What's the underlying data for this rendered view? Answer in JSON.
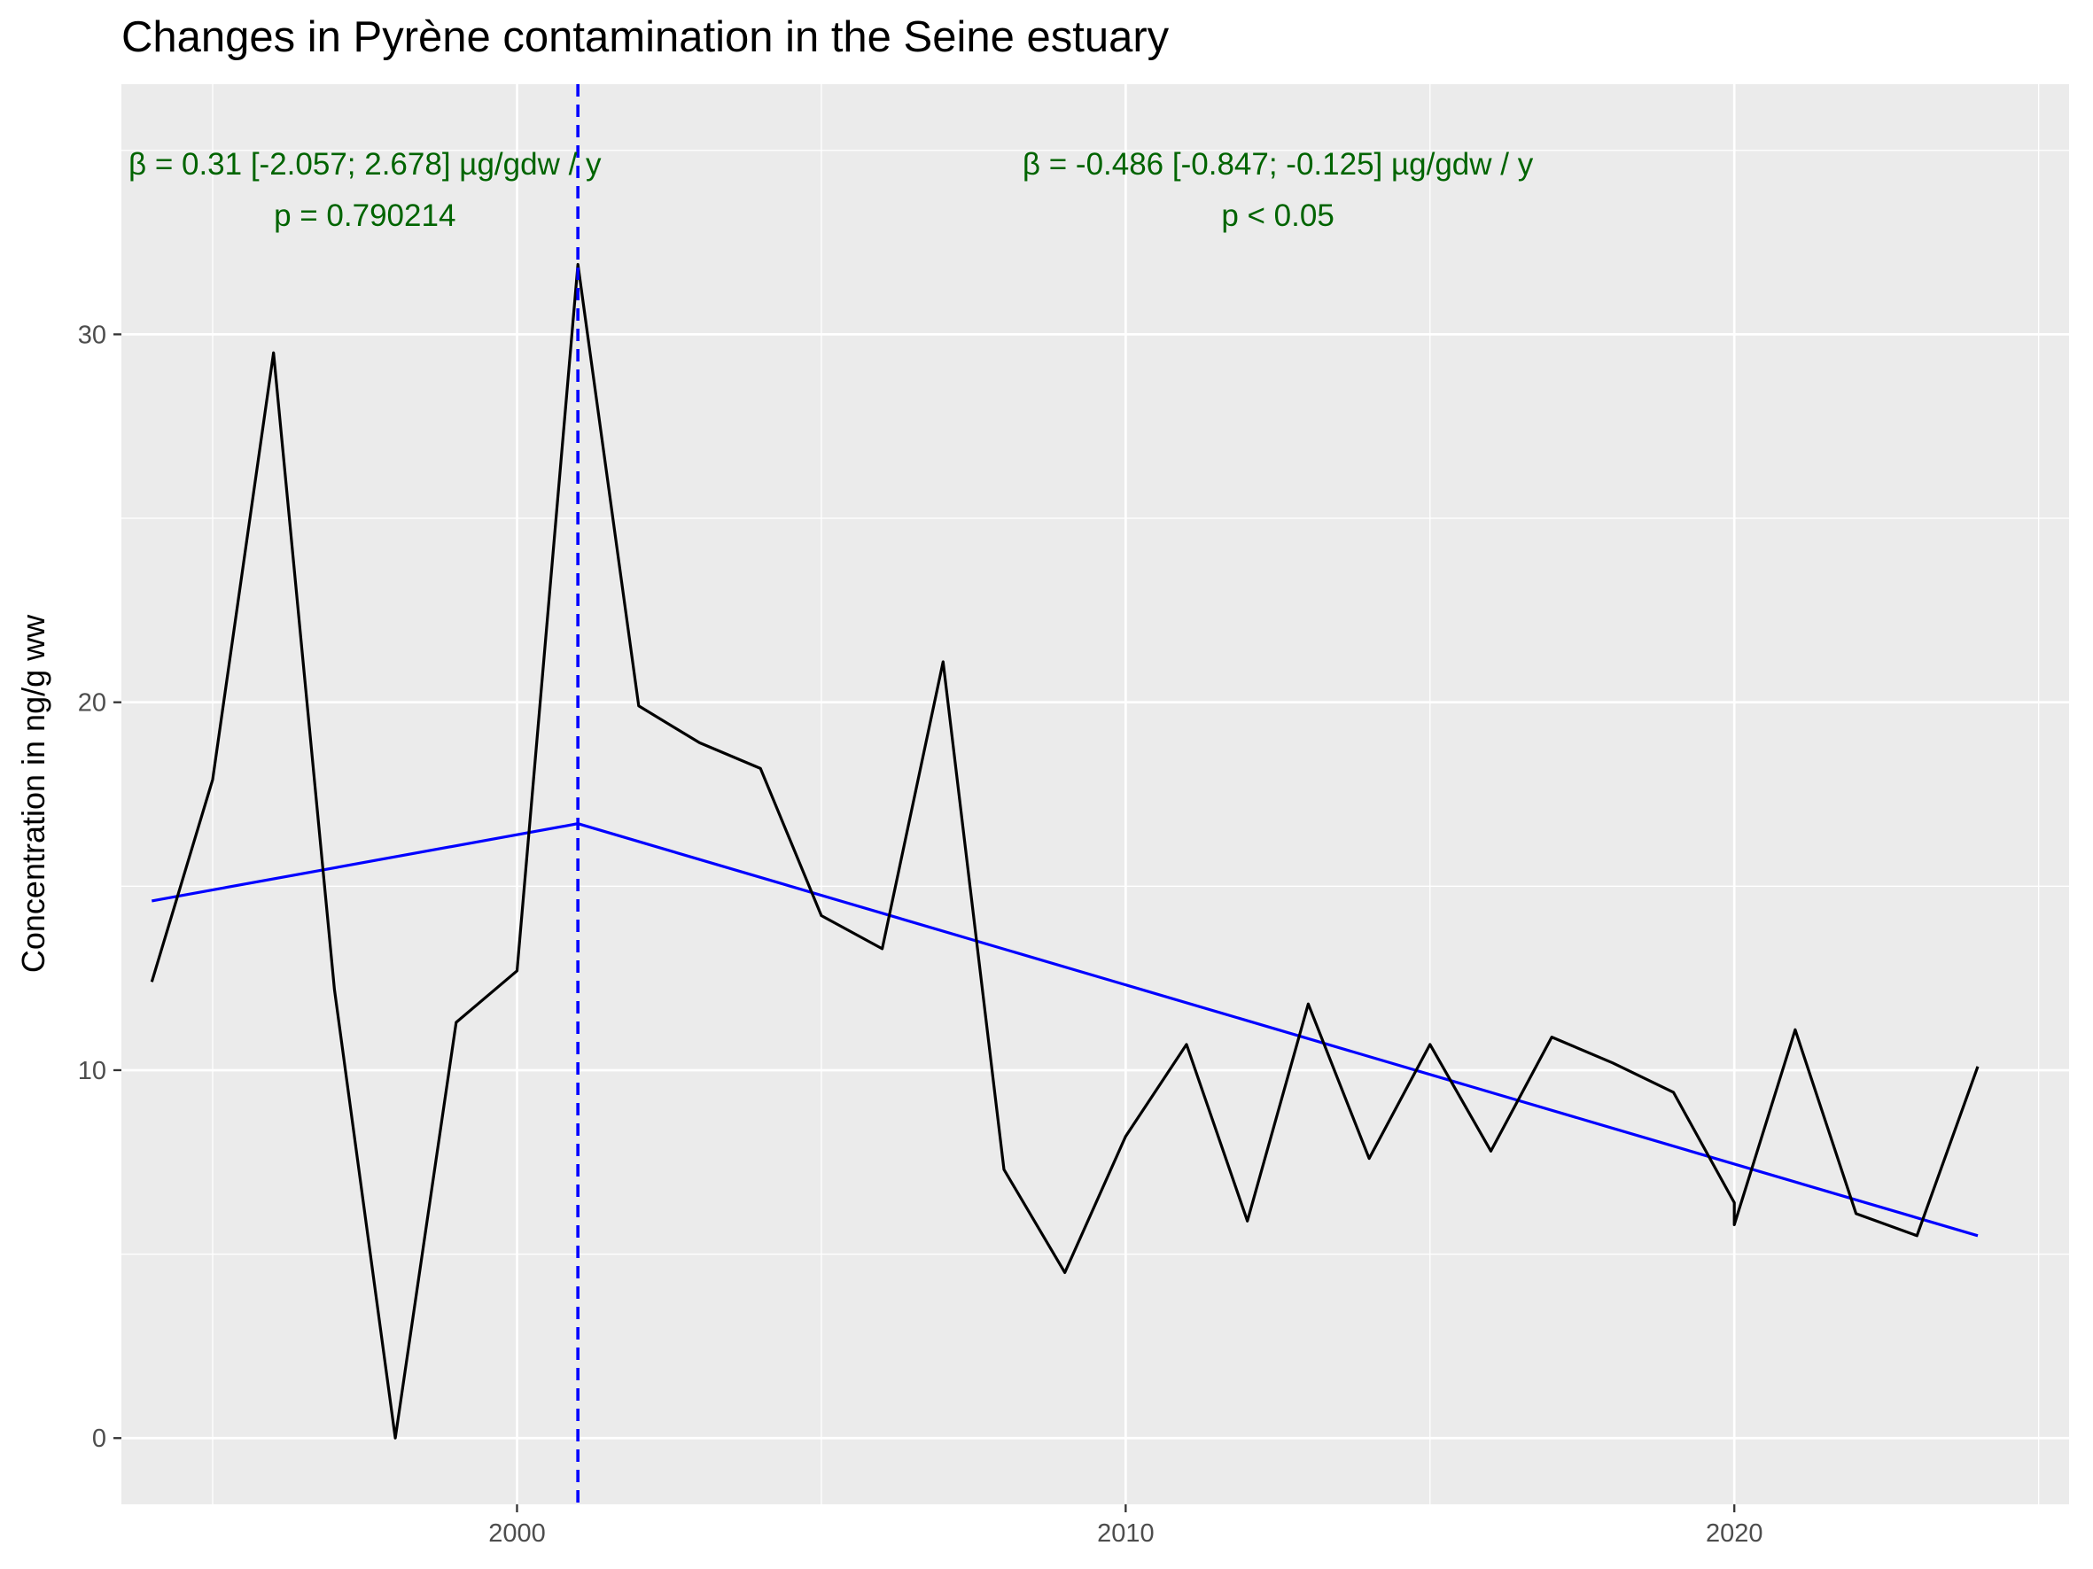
{
  "chart_data": {
    "type": "line",
    "title": "Changes in Pyrène contamination in the Seine estuary",
    "xlabel": "",
    "ylabel": "Concentration in ng/g ww",
    "xlim": [
      1993.5,
      2025.5
    ],
    "ylim": [
      -1.8,
      36.8
    ],
    "x_ticks": [
      2000,
      2010,
      2020
    ],
    "x_tick_labels": [
      "2000",
      "2010",
      "2020"
    ],
    "x_minor_ticks": [
      1995,
      2005,
      2015,
      2025
    ],
    "y_ticks": [
      0,
      10,
      20,
      30
    ],
    "y_tick_labels": [
      "0",
      "10",
      "20",
      "30"
    ],
    "y_minor_ticks": [
      5,
      15,
      25,
      35
    ],
    "grid": true,
    "legend": "none",
    "series": [
      {
        "kind": "observed",
        "color": "#000000",
        "x": [
          1994,
          1995,
          1996,
          1997,
          1998,
          1999,
          2000,
          2001,
          2002,
          2003,
          2004,
          2005,
          2006,
          2007,
          2008,
          2009,
          2010,
          2011,
          2012,
          2013,
          2014,
          2015,
          2016,
          2017,
          2018,
          2019,
          2020,
          2020,
          2021,
          2022,
          2023,
          2024
        ],
        "values": [
          12.4,
          17.9,
          29.5,
          12.2,
          0.0,
          11.3,
          12.7,
          31.9,
          19.9,
          18.9,
          18.2,
          14.2,
          13.3,
          21.1,
          7.3,
          4.5,
          8.2,
          10.7,
          5.9,
          11.8,
          7.6,
          10.7,
          7.8,
          10.9,
          10.2,
          9.4,
          6.4,
          5.8,
          11.1,
          6.1,
          5.5,
          10.1
        ]
      },
      {
        "kind": "segmented-trend",
        "color": "#0000ff",
        "x": [
          1994,
          2001,
          2024
        ],
        "values": [
          14.6,
          16.7,
          5.5
        ]
      }
    ],
    "breakpoint": {
      "x": 2001,
      "color": "#0000ff",
      "style": "dashed"
    },
    "annotations": [
      {
        "line1": "β = 0.31 [-2.057; 2.678] µg/gdw / y",
        "line2": "p = 0.790214",
        "color": "#006400",
        "x": 1997.5
      },
      {
        "line1": "β = -0.486 [-0.847; -0.125] µg/gdw / y",
        "line2": "p < 0.05",
        "color": "#006400",
        "x": 2012.5
      }
    ],
    "panel_background": "#ebebeb",
    "grid_color": "#ffffff"
  }
}
